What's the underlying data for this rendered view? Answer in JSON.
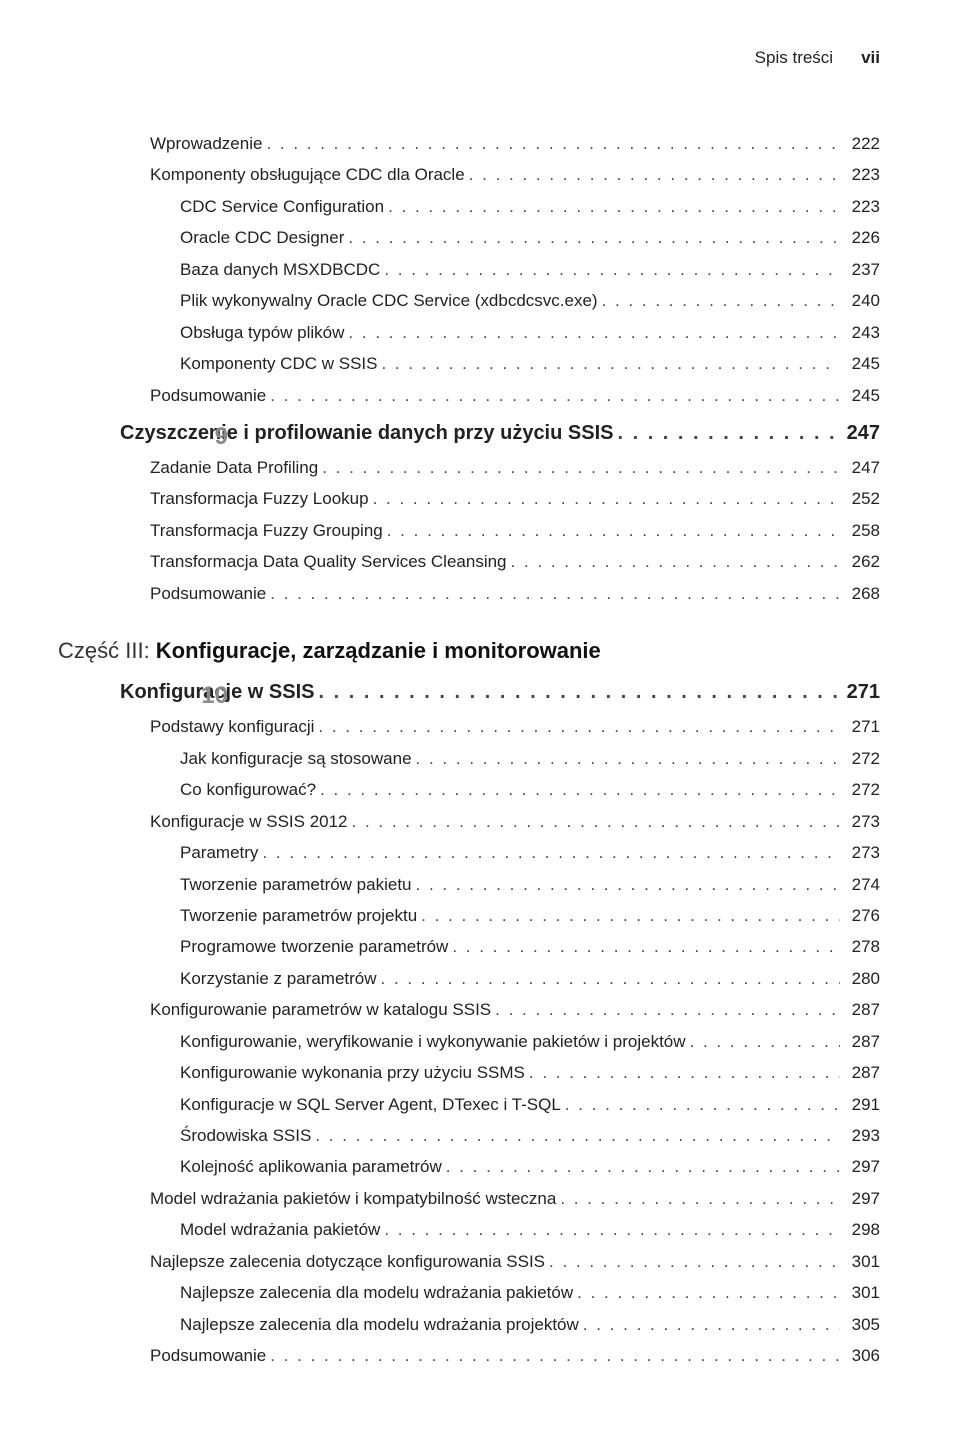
{
  "header": {
    "title": "Spis treści",
    "page": "vii"
  },
  "sections": [
    {
      "type": "entries",
      "items": [
        {
          "indent": 1,
          "label": "Wprowadzenie",
          "page": "222"
        },
        {
          "indent": 1,
          "label": "Komponenty obsługujące CDC dla Oracle",
          "page": "223"
        },
        {
          "indent": 2,
          "label": "CDC Service Configuration",
          "page": "223"
        },
        {
          "indent": 2,
          "label": "Oracle CDC Designer",
          "page": "226"
        },
        {
          "indent": 2,
          "label": "Baza danych MSXDBCDC",
          "page": "237"
        },
        {
          "indent": 2,
          "label": "Plik wykonywalny Oracle CDC Service (xdbcdcsvc.exe)",
          "page": "240"
        },
        {
          "indent": 2,
          "label": "Obsługa typów plików",
          "page": "243"
        },
        {
          "indent": 2,
          "label": "Komponenty CDC w SSIS",
          "page": "245"
        },
        {
          "indent": 1,
          "label": "Podsumowanie",
          "page": "245"
        }
      ]
    },
    {
      "type": "chapter",
      "number": "9",
      "title": "Czyszczenie i profilowanie danych przy użyciu SSIS",
      "page": "247",
      "items": [
        {
          "indent": 1,
          "label": "Zadanie Data Profiling",
          "page": "247"
        },
        {
          "indent": 1,
          "label": "Transformacja Fuzzy Lookup",
          "page": "252"
        },
        {
          "indent": 1,
          "label": "Transformacja Fuzzy Grouping",
          "page": "258"
        },
        {
          "indent": 1,
          "label": "Transformacja Data Quality Services Cleansing",
          "page": "262"
        },
        {
          "indent": 1,
          "label": "Podsumowanie",
          "page": "268"
        }
      ]
    },
    {
      "type": "part",
      "prefix": "Część III:",
      "title": "Konfiguracje, zarządzanie i monitorowanie"
    },
    {
      "type": "chapter",
      "number": "10",
      "title": "Konfiguracje w SSIS",
      "page": "271",
      "items": [
        {
          "indent": 1,
          "label": "Podstawy konfiguracji",
          "page": "271"
        },
        {
          "indent": 2,
          "label": "Jak konfiguracje są stosowane",
          "page": "272"
        },
        {
          "indent": 2,
          "label": "Co konfigurować?",
          "page": "272"
        },
        {
          "indent": 1,
          "label": "Konfiguracje w SSIS 2012",
          "page": "273"
        },
        {
          "indent": 2,
          "label": "Parametry",
          "page": "273"
        },
        {
          "indent": 2,
          "label": "Tworzenie parametrów pakietu",
          "page": "274"
        },
        {
          "indent": 2,
          "label": "Tworzenie parametrów projektu",
          "page": "276"
        },
        {
          "indent": 2,
          "label": "Programowe tworzenie parametrów",
          "page": "278"
        },
        {
          "indent": 2,
          "label": "Korzystanie z parametrów",
          "page": "280"
        },
        {
          "indent": 1,
          "label": "Konfigurowanie parametrów w katalogu SSIS",
          "page": "287"
        },
        {
          "indent": 2,
          "label": "Konfigurowanie, weryfikowanie i wykonywanie pakietów i projektów",
          "page": "287"
        },
        {
          "indent": 2,
          "label": "Konfigurowanie wykonania przy użyciu SSMS",
          "page": "287"
        },
        {
          "indent": 2,
          "label": "Konfiguracje w SQL Server Agent, DTexec i T-SQL",
          "page": "291"
        },
        {
          "indent": 2,
          "label": "Środowiska SSIS",
          "page": "293"
        },
        {
          "indent": 2,
          "label": "Kolejność aplikowania parametrów",
          "page": "297"
        },
        {
          "indent": 1,
          "label": "Model wdrażania pakietów i kompatybilność wsteczna",
          "page": "297"
        },
        {
          "indent": 2,
          "label": "Model wdrażania pakietów",
          "page": "298"
        },
        {
          "indent": 1,
          "label": "Najlepsze zalecenia dotyczące konfigurowania SSIS",
          "page": "301"
        },
        {
          "indent": 2,
          "label": "Najlepsze zalecenia dla modelu wdrażania pakietów",
          "page": "301"
        },
        {
          "indent": 2,
          "label": "Najlepsze zalecenia dla modelu wdrażania projektów",
          "page": "305"
        },
        {
          "indent": 1,
          "label": "Podsumowanie",
          "page": "306"
        }
      ]
    }
  ]
}
